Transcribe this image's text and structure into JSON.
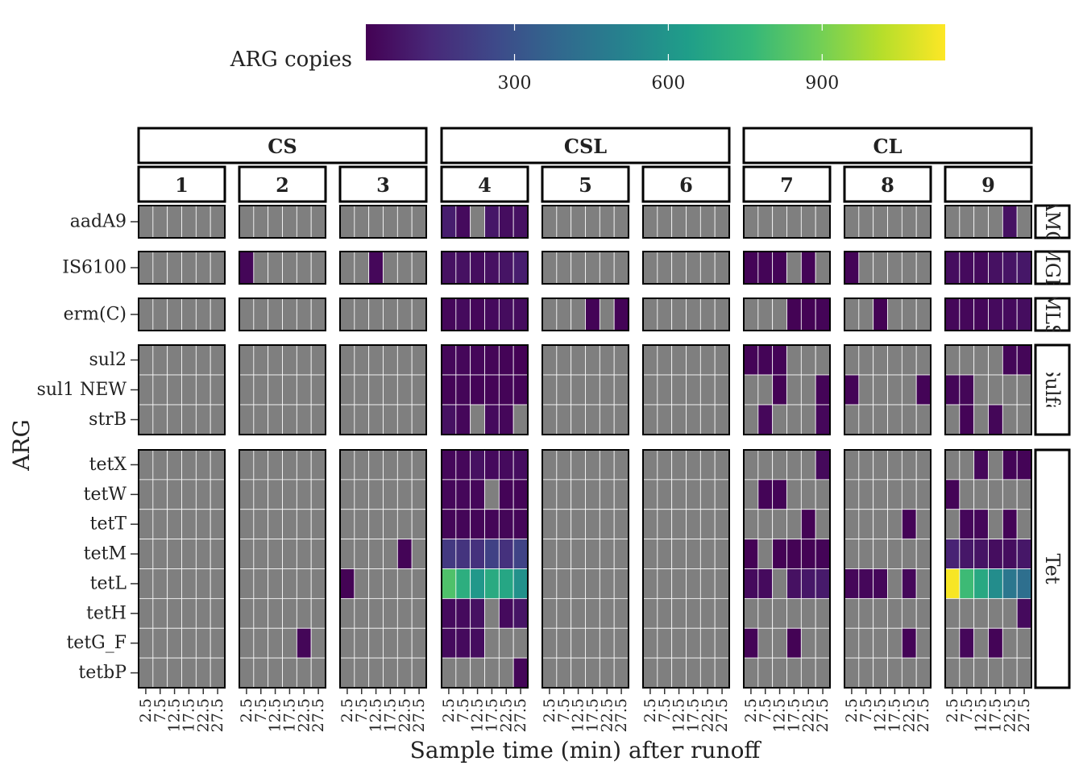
{
  "chart_data": {
    "type": "heatmap",
    "xlabel": "Sample time (min) after runoff",
    "ylabel": "ARG",
    "legend": {
      "title": "ARG copies",
      "position": "top",
      "min": 10,
      "max": 1140,
      "ticks": [
        300,
        600,
        900
      ],
      "colormap": "viridis",
      "na_color": "#7f7f7f"
    },
    "x_ticks": [
      "2.5",
      "7.5",
      "12.5",
      "17.5",
      "22.5",
      "27.5"
    ],
    "column_groups": [
      {
        "label": "CS",
        "panels": [
          "1",
          "2",
          "3"
        ]
      },
      {
        "label": "CSL",
        "panels": [
          "4",
          "5",
          "6"
        ]
      },
      {
        "label": "CL",
        "panels": [
          "7",
          "8",
          "9"
        ]
      }
    ],
    "row_groups": [
      {
        "label": "Am",
        "display": "AMG",
        "genes": [
          "aadA9"
        ]
      },
      {
        "label": "MGE",
        "display": "MGE",
        "genes": [
          "IS6100"
        ]
      },
      {
        "label": "MLS",
        "display": "MLS",
        "genes": [
          "erm(C)"
        ]
      },
      {
        "label": "Sulfa",
        "display": "Sulfa",
        "genes": [
          "sul2",
          "sul1 NEW",
          "strB"
        ]
      },
      {
        "label": "Tet",
        "display": "Tet",
        "genes": [
          "tetX",
          "tetW",
          "tetT",
          "tetM",
          "tetL",
          "tetH",
          "tetG_F",
          "tetbP"
        ]
      }
    ],
    "values": {
      "1": {},
      "2": {
        "IS6100": [
          25,
          null,
          null,
          null,
          null,
          null
        ],
        "tetG_F": [
          null,
          null,
          null,
          null,
          25,
          null
        ]
      },
      "3": {
        "IS6100": [
          null,
          null,
          30,
          null,
          null,
          null
        ],
        "tetM": [
          null,
          null,
          null,
          null,
          20,
          null
        ],
        "tetL": [
          15,
          null,
          null,
          null,
          null,
          null
        ]
      },
      "4": {
        "aadA9": [
          100,
          40,
          null,
          80,
          50,
          60
        ],
        "IS6100": [
          60,
          60,
          50,
          60,
          70,
          100
        ],
        "erm(C)": [
          30,
          40,
          30,
          40,
          45,
          45
        ],
        "sul2": [
          30,
          30,
          30,
          25,
          20,
          15
        ],
        "sul1 NEW": [
          20,
          25,
          20,
          20,
          20,
          20
        ],
        "strB": [
          60,
          30,
          null,
          40,
          30,
          null
        ],
        "tetX": [
          30,
          30,
          60,
          40,
          40,
          50
        ],
        "tetW": [
          30,
          30,
          30,
          null,
          20,
          20
        ],
        "tetT": [
          25,
          25,
          25,
          25,
          25,
          25
        ],
        "tetM": [
          200,
          180,
          170,
          230,
          170,
          240
        ],
        "tetL": [
          820,
          720,
          610,
          700,
          680,
          580
        ],
        "tetH": [
          40,
          40,
          60,
          null,
          40,
          70
        ],
        "tetG_F": [
          40,
          40,
          50,
          null,
          null,
          null
        ],
        "tetbP": [
          null,
          null,
          null,
          null,
          null,
          25
        ]
      },
      "5": {
        "erm(C)": [
          null,
          null,
          null,
          20,
          null,
          20
        ]
      },
      "6": {},
      "7": {
        "IS6100": [
          20,
          20,
          20,
          null,
          20,
          null
        ],
        "erm(C)": [
          null,
          null,
          null,
          15,
          15,
          20
        ],
        "sul2": [
          20,
          20,
          20,
          null,
          null,
          null
        ],
        "sul1 NEW": [
          null,
          null,
          15,
          null,
          null,
          20
        ],
        "strB": [
          null,
          30,
          null,
          null,
          null,
          30
        ],
        "tetX": [
          null,
          null,
          null,
          null,
          null,
          35
        ],
        "tetW": [
          null,
          20,
          20,
          null,
          null,
          null
        ],
        "tetT": [
          null,
          null,
          null,
          null,
          15,
          null
        ],
        "tetM": [
          15,
          null,
          15,
          15,
          15,
          20
        ],
        "tetL": [
          40,
          40,
          null,
          60,
          80,
          90
        ],
        "tetG_F": [
          20,
          null,
          null,
          15,
          null,
          null
        ]
      },
      "8": {
        "IS6100": [
          20,
          null,
          null,
          null,
          null,
          null
        ],
        "erm(C)": [
          null,
          null,
          15,
          null,
          null,
          null
        ],
        "sul1 NEW": [
          20,
          null,
          null,
          null,
          null,
          20
        ],
        "tetT": [
          null,
          null,
          null,
          null,
          20,
          null
        ],
        "tetL": [
          30,
          30,
          30,
          null,
          30,
          null
        ],
        "tetG_F": [
          null,
          null,
          null,
          null,
          20,
          null
        ]
      },
      "9": {
        "aadA9": [
          null,
          null,
          null,
          null,
          60,
          null
        ],
        "IS6100": [
          50,
          40,
          40,
          60,
          70,
          80
        ],
        "erm(C)": [
          30,
          30,
          30,
          40,
          40,
          50
        ],
        "sul2": [
          null,
          null,
          null,
          null,
          25,
          25
        ],
        "sul1 NEW": [
          25,
          25,
          null,
          null,
          null,
          null
        ],
        "strB": [
          null,
          20,
          null,
          25,
          null,
          null
        ],
        "tetX": [
          null,
          null,
          30,
          null,
          20,
          20
        ],
        "tetW": [
          20,
          null,
          null,
          null,
          null,
          null
        ],
        "tetT": [
          null,
          30,
          30,
          null,
          20,
          null
        ],
        "tetM": [
          120,
          80,
          70,
          50,
          50,
          80
        ],
        "tetL": [
          1130,
          780,
          690,
          560,
          460,
          420
        ],
        "tetH": [
          null,
          null,
          null,
          null,
          null,
          40
        ],
        "tetG_F": [
          null,
          30,
          null,
          20,
          null,
          null
        ]
      }
    }
  }
}
